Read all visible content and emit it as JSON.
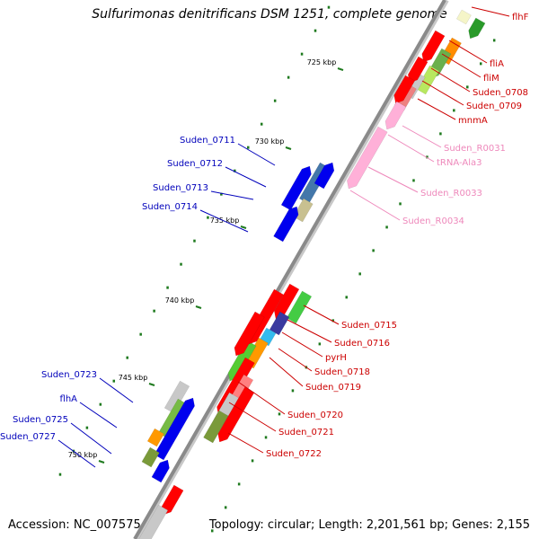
{
  "title": "Sulfurimonas denitrificans DSM 1251, complete genome",
  "footer": {
    "accession": "Accession: NC_007575",
    "summary": "Topology: circular; Length: 2,201,561 bp; Genes: 2,155"
  },
  "colors": {
    "backbone": "#8a8a8a",
    "tick": "#1e7a1e",
    "forward_label": "#cc0000",
    "reverse_label": "#0000bb",
    "rna_label": "#ee88bb"
  },
  "ticks": [
    {
      "label": "725 kbp",
      "id": "t725"
    },
    {
      "label": "730 kbp",
      "id": "t730"
    },
    {
      "label": "735 kbp",
      "id": "t735"
    },
    {
      "label": "740 kbp",
      "id": "t740"
    },
    {
      "label": "745 kbp",
      "id": "t745"
    },
    {
      "label": "750 kbp",
      "id": "t750"
    }
  ],
  "forward_labels": [
    "flhF",
    "fliA",
    "fliM",
    "Suden_0708",
    "Suden_0709",
    "mnmA",
    "Suden_0715",
    "Suden_0716",
    "pyrH",
    "Suden_0718",
    "Suden_0719",
    "Suden_0720",
    "Suden_0721",
    "Suden_0722"
  ],
  "rna_labels": [
    "Suden_R0031",
    "tRNA-Ala3",
    "Suden_R0033",
    "Suden_R0034"
  ],
  "reverse_labels": [
    "Suden_0711",
    "Suden_0712",
    "Suden_0713",
    "Suden_0714",
    "Suden_0723",
    "flhA",
    "Suden_0725",
    "Suden_0727"
  ]
}
